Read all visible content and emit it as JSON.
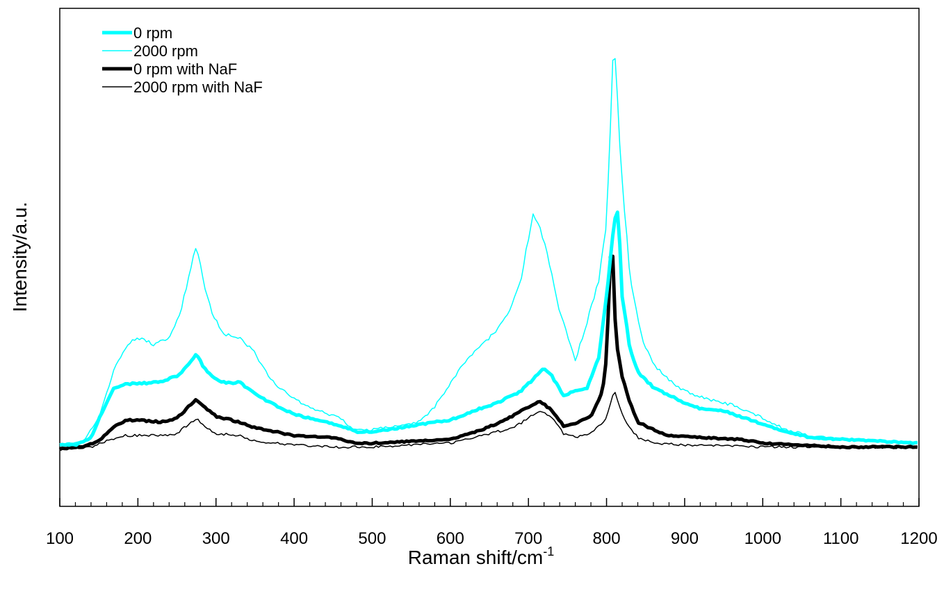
{
  "chart_data": {
    "type": "line",
    "title": "",
    "xlabel": "Raman shift/cm",
    "xlabel_sup": "-1",
    "ylabel": "Intensity/a.u.",
    "xlim": [
      100,
      1200
    ],
    "ylim": [
      -15,
      115
    ],
    "x_ticks": [
      "100",
      "200",
      "300",
      "400",
      "500",
      "600",
      "700",
      "800",
      "900",
      "1000",
      "1100",
      "1200"
    ],
    "y_ticks_shown": false,
    "grid": false,
    "legend_position": "top-left",
    "series": [
      {
        "name": "0 rpm",
        "color": "#00ffff",
        "width": "thick",
        "points": [
          [
            100,
            1
          ],
          [
            120,
            1
          ],
          [
            140,
            3
          ],
          [
            155,
            10
          ],
          [
            170,
            16
          ],
          [
            185,
            17
          ],
          [
            200,
            17
          ],
          [
            230,
            17.5
          ],
          [
            250,
            19
          ],
          [
            265,
            22
          ],
          [
            275,
            25
          ],
          [
            285,
            21
          ],
          [
            300,
            18
          ],
          [
            320,
            17
          ],
          [
            330,
            17.5
          ],
          [
            345,
            15
          ],
          [
            370,
            12
          ],
          [
            400,
            9
          ],
          [
            430,
            7.5
          ],
          [
            460,
            6
          ],
          [
            480,
            4.5
          ],
          [
            500,
            4.5
          ],
          [
            520,
            5
          ],
          [
            550,
            6
          ],
          [
            580,
            7
          ],
          [
            600,
            7.5
          ],
          [
            630,
            10
          ],
          [
            660,
            12
          ],
          [
            690,
            15
          ],
          [
            710,
            19
          ],
          [
            720,
            21
          ],
          [
            730,
            19
          ],
          [
            745,
            14
          ],
          [
            760,
            15
          ],
          [
            775,
            16
          ],
          [
            790,
            24
          ],
          [
            800,
            40
          ],
          [
            810,
            60
          ],
          [
            815,
            62
          ],
          [
            820,
            40
          ],
          [
            830,
            26
          ],
          [
            840,
            20
          ],
          [
            860,
            16
          ],
          [
            880,
            14
          ],
          [
            900,
            12
          ],
          [
            920,
            10.5
          ],
          [
            950,
            10
          ],
          [
            970,
            8.5
          ],
          [
            1000,
            6.5
          ],
          [
            1030,
            4.5
          ],
          [
            1060,
            3
          ],
          [
            1100,
            2.5
          ],
          [
            1150,
            2
          ],
          [
            1200,
            1.5
          ]
        ]
      },
      {
        "name": "2000 rpm",
        "color": "#00ffff",
        "width": "thin",
        "points": [
          [
            100,
            1
          ],
          [
            130,
            2
          ],
          [
            150,
            8
          ],
          [
            170,
            21
          ],
          [
            190,
            28
          ],
          [
            205,
            29
          ],
          [
            220,
            27
          ],
          [
            240,
            29
          ],
          [
            255,
            36
          ],
          [
            265,
            45
          ],
          [
            275,
            53
          ],
          [
            285,
            43
          ],
          [
            295,
            35
          ],
          [
            310,
            30
          ],
          [
            330,
            29
          ],
          [
            350,
            25
          ],
          [
            370,
            18
          ],
          [
            400,
            13
          ],
          [
            430,
            10
          ],
          [
            460,
            8
          ],
          [
            475,
            5
          ],
          [
            500,
            5
          ],
          [
            530,
            6
          ],
          [
            560,
            7
          ],
          [
            580,
            11
          ],
          [
            600,
            17
          ],
          [
            620,
            23
          ],
          [
            640,
            27
          ],
          [
            660,
            31
          ],
          [
            675,
            36
          ],
          [
            690,
            44
          ],
          [
            700,
            55
          ],
          [
            705,
            61
          ],
          [
            715,
            58
          ],
          [
            725,
            50
          ],
          [
            740,
            36
          ],
          [
            760,
            23
          ],
          [
            775,
            33
          ],
          [
            790,
            44
          ],
          [
            800,
            59
          ],
          [
            808,
            101
          ],
          [
            812,
            101
          ],
          [
            818,
            75
          ],
          [
            830,
            45
          ],
          [
            845,
            29
          ],
          [
            860,
            22
          ],
          [
            880,
            18
          ],
          [
            900,
            15
          ],
          [
            930,
            13
          ],
          [
            960,
            11.5
          ],
          [
            980,
            10
          ],
          [
            1000,
            8
          ],
          [
            1030,
            5
          ],
          [
            1060,
            3.5
          ],
          [
            1100,
            2.5
          ],
          [
            1150,
            2
          ],
          [
            1200,
            1.5
          ]
        ]
      },
      {
        "name": "0 rpm with NaF",
        "color": "#000000",
        "width": "thick",
        "points": [
          [
            100,
            0
          ],
          [
            130,
            0.5
          ],
          [
            150,
            2
          ],
          [
            170,
            6
          ],
          [
            185,
            7.5
          ],
          [
            200,
            7.5
          ],
          [
            230,
            7
          ],
          [
            250,
            8
          ],
          [
            265,
            11
          ],
          [
            275,
            13
          ],
          [
            285,
            11
          ],
          [
            300,
            8.5
          ],
          [
            330,
            7
          ],
          [
            350,
            5.5
          ],
          [
            400,
            3.5
          ],
          [
            450,
            3
          ],
          [
            480,
            1.5
          ],
          [
            500,
            1.5
          ],
          [
            550,
            2
          ],
          [
            600,
            2.5
          ],
          [
            640,
            5
          ],
          [
            670,
            7.5
          ],
          [
            700,
            11
          ],
          [
            715,
            12.5
          ],
          [
            730,
            10
          ],
          [
            745,
            6
          ],
          [
            760,
            6.5
          ],
          [
            780,
            8.5
          ],
          [
            795,
            15
          ],
          [
            800,
            24
          ],
          [
            805,
            50
          ],
          [
            808,
            50
          ],
          [
            812,
            28
          ],
          [
            820,
            19
          ],
          [
            830,
            12
          ],
          [
            840,
            7
          ],
          [
            860,
            5
          ],
          [
            880,
            3.5
          ],
          [
            920,
            3
          ],
          [
            970,
            2.5
          ],
          [
            1000,
            1.5
          ],
          [
            1050,
            1
          ],
          [
            1100,
            0.5
          ],
          [
            1200,
            0.5
          ]
        ]
      },
      {
        "name": "2000 rpm with NaF",
        "color": "#000000",
        "width": "thin",
        "points": [
          [
            100,
            0
          ],
          [
            140,
            0.5
          ],
          [
            160,
            2
          ],
          [
            185,
            3.5
          ],
          [
            200,
            3.5
          ],
          [
            230,
            3.5
          ],
          [
            250,
            4
          ],
          [
            265,
            6.5
          ],
          [
            275,
            8
          ],
          [
            285,
            6
          ],
          [
            300,
            4
          ],
          [
            330,
            3.5
          ],
          [
            350,
            2
          ],
          [
            400,
            1
          ],
          [
            450,
            0.5
          ],
          [
            500,
            0.5
          ],
          [
            550,
            1
          ],
          [
            600,
            1.5
          ],
          [
            650,
            4
          ],
          [
            680,
            5.5
          ],
          [
            700,
            8
          ],
          [
            715,
            10
          ],
          [
            730,
            8
          ],
          [
            745,
            4
          ],
          [
            760,
            3
          ],
          [
            780,
            4
          ],
          [
            800,
            8
          ],
          [
            810,
            15
          ],
          [
            815,
            12
          ],
          [
            825,
            7
          ],
          [
            840,
            3
          ],
          [
            860,
            1.5
          ],
          [
            900,
            1
          ],
          [
            1000,
            0.5
          ],
          [
            1100,
            0.5
          ],
          [
            1200,
            0.3
          ]
        ]
      }
    ]
  }
}
